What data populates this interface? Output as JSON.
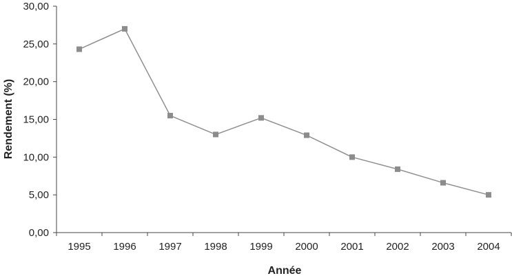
{
  "chart_data": {
    "type": "line",
    "title": "",
    "xlabel": "Année",
    "ylabel": "Rendement (%)",
    "categories": [
      "1995",
      "1996",
      "1997",
      "1998",
      "1999",
      "2000",
      "2001",
      "2002",
      "2003",
      "2004"
    ],
    "series": [
      {
        "values": [
          24.3,
          27.0,
          15.5,
          13.0,
          15.2,
          12.9,
          10.0,
          8.4,
          6.6,
          5.0
        ]
      }
    ],
    "ylim": [
      0,
      30
    ],
    "yticks": [
      "0,00",
      "5,00",
      "10,00",
      "15,00",
      "20,00",
      "25,00",
      "30,00"
    ],
    "grid": false,
    "legend": "none",
    "colors": {
      "line": "#909090",
      "marker": "#8c8c8c",
      "axis": "#444444"
    }
  }
}
